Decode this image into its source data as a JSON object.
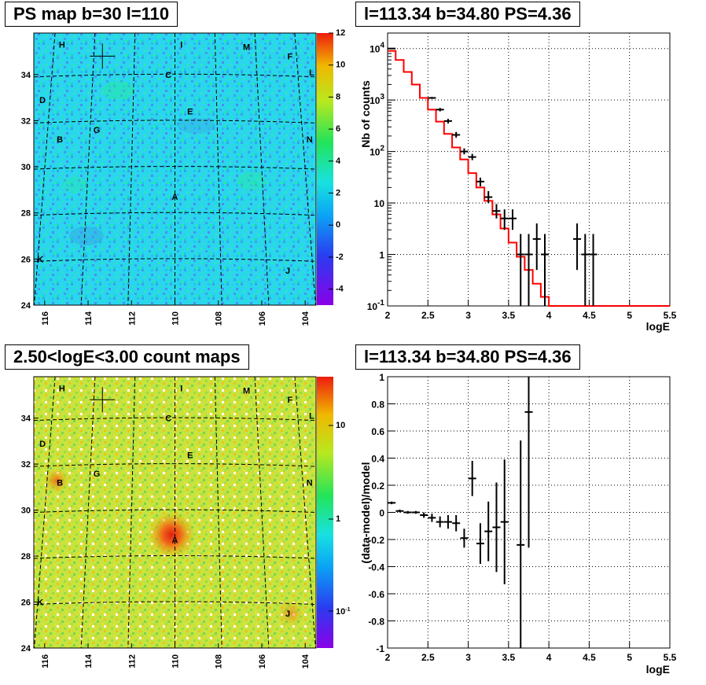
{
  "panels": {
    "tl_title": "PS map b=30 l=110",
    "tr_title": "l=113.34 b=34.80 PS=4.36",
    "bl_title": "2.50<logE<3.00 count maps",
    "br_title": "l=113.34 b=34.80 PS=4.36"
  },
  "colors": {
    "red_model": "#ff0000",
    "data": "#000000",
    "ps_map_base": "#2ad6ee",
    "count_map_base": "#bfe23c"
  },
  "chart_data": [
    {
      "type": "heatmap",
      "title": "PS map b=30 l=110",
      "xticks": [
        116,
        114,
        112,
        110,
        108,
        106,
        104
      ],
      "yticks": [
        34,
        32,
        30,
        28,
        26,
        24
      ],
      "xlim": [
        116.5,
        103.5
      ],
      "ylim": [
        24,
        35.8
      ],
      "zticks": [
        12,
        10,
        8,
        6,
        4,
        2,
        0,
        -2,
        -4
      ],
      "zlim": [
        -5,
        12
      ],
      "source_labels": [
        {
          "text": "H",
          "l": 115.2,
          "b": 35.3
        },
        {
          "text": "I",
          "l": 109.7,
          "b": 35.3
        },
        {
          "text": "M",
          "l": 106.7,
          "b": 35.2
        },
        {
          "text": "F",
          "l": 104.7,
          "b": 34.8
        },
        {
          "text": "L",
          "l": 103.7,
          "b": 34.1
        },
        {
          "text": "C",
          "l": 110.3,
          "b": 34.0
        },
        {
          "text": "D",
          "l": 116.1,
          "b": 32.9
        },
        {
          "text": "E",
          "l": 109.3,
          "b": 32.4
        },
        {
          "text": "G",
          "l": 113.6,
          "b": 31.6
        },
        {
          "text": "B",
          "l": 115.3,
          "b": 31.2
        },
        {
          "text": "N",
          "l": 103.8,
          "b": 31.2
        },
        {
          "text": "A",
          "l": 110.0,
          "b": 28.7
        },
        {
          "text": "K",
          "l": 116.2,
          "b": 26.0
        },
        {
          "text": "J",
          "l": 104.8,
          "b": 25.5
        }
      ],
      "marker": {
        "l": 113.34,
        "b": 34.8
      }
    },
    {
      "type": "line",
      "title": "l=113.34 b=34.80 PS=4.36",
      "xlabel": "logE",
      "ylabel": "Nb of counts",
      "yscale": "log",
      "xlim": [
        2,
        5.5
      ],
      "ylim": [
        0.1,
        20000
      ],
      "xticks": [
        "2",
        "2.5",
        "3",
        "3.5",
        "4",
        "4.5",
        "5",
        "5.5"
      ],
      "yticks": [
        {
          "value": 10000,
          "base": "10",
          "exp": "4"
        },
        {
          "value": 1000,
          "base": "10",
          "exp": "3"
        },
        {
          "value": 100,
          "base": "10",
          "exp": "2"
        },
        {
          "value": 10,
          "base": "10",
          "exp": ""
        },
        {
          "value": 1,
          "base": "1",
          "exp": ""
        },
        {
          "value": 0.1,
          "base": "10",
          "exp": "-1"
        }
      ],
      "model": {
        "edges": [
          2.0,
          2.1,
          2.2,
          2.3,
          2.4,
          2.5,
          2.6,
          2.7,
          2.8,
          2.9,
          3.0,
          3.1,
          3.2,
          3.3,
          3.4,
          3.5,
          3.6,
          3.7,
          3.8,
          3.9,
          4.0,
          5.5
        ],
        "values": [
          9000,
          6000,
          3500,
          2000,
          1100,
          650,
          380,
          220,
          120,
          70,
          38,
          20,
          11,
          6,
          3.2,
          1.7,
          0.9,
          0.5,
          0.27,
          0.15,
          0.1
        ]
      },
      "data": [
        {
          "x": 2.05,
          "y": 10000,
          "lo": 10000,
          "hi": 10000
        },
        {
          "x": 2.55,
          "y": 1100,
          "lo": 1050,
          "hi": 1150
        },
        {
          "x": 2.65,
          "y": 650,
          "lo": 600,
          "hi": 700
        },
        {
          "x": 2.75,
          "y": 390,
          "lo": 350,
          "hi": 430
        },
        {
          "x": 2.85,
          "y": 210,
          "lo": 185,
          "hi": 240
        },
        {
          "x": 2.95,
          "y": 100,
          "lo": 88,
          "hi": 115
        },
        {
          "x": 3.05,
          "y": 78,
          "lo": 68,
          "hi": 90
        },
        {
          "x": 3.15,
          "y": 26,
          "lo": 21,
          "hi": 31
        },
        {
          "x": 3.25,
          "y": 13,
          "lo": 10,
          "hi": 17
        },
        {
          "x": 3.35,
          "y": 7,
          "lo": 5,
          "hi": 9.5
        },
        {
          "x": 3.45,
          "y": 5,
          "lo": 3,
          "hi": 7.5
        },
        {
          "x": 3.55,
          "y": 5,
          "lo": 3,
          "hi": 7.5
        },
        {
          "x": 3.65,
          "y": 1,
          "lo": 0.1,
          "hi": 2.5
        },
        {
          "x": 3.75,
          "y": 1,
          "lo": 0.1,
          "hi": 2.5
        },
        {
          "x": 3.85,
          "y": 2,
          "lo": 0.5,
          "hi": 4
        },
        {
          "x": 3.95,
          "y": 1,
          "lo": 0.1,
          "hi": 2.5
        },
        {
          "x": 4.35,
          "y": 2,
          "lo": 0.5,
          "hi": 4
        },
        {
          "x": 4.45,
          "y": 1,
          "lo": 0.1,
          "hi": 2.5
        },
        {
          "x": 4.55,
          "y": 1,
          "lo": 0.1,
          "hi": 2.5
        }
      ]
    },
    {
      "type": "heatmap",
      "title": "2.50<logE<3.00 count maps",
      "xticks": [
        116,
        114,
        112,
        110,
        108,
        106,
        104
      ],
      "yticks": [
        34,
        32,
        30,
        28,
        26,
        24
      ],
      "xlim": [
        116.5,
        103.5
      ],
      "ylim": [
        24,
        35.8
      ],
      "zscale": "log",
      "zticks": [
        "10",
        "1",
        "10^-1"
      ],
      "source_labels": [
        {
          "text": "H",
          "l": 115.2,
          "b": 35.3
        },
        {
          "text": "I",
          "l": 109.7,
          "b": 35.3
        },
        {
          "text": "M",
          "l": 106.7,
          "b": 35.2
        },
        {
          "text": "F",
          "l": 104.7,
          "b": 34.8
        },
        {
          "text": "L",
          "l": 103.7,
          "b": 34.1
        },
        {
          "text": "C",
          "l": 110.3,
          "b": 34.0
        },
        {
          "text": "D",
          "l": 116.1,
          "b": 32.9
        },
        {
          "text": "E",
          "l": 109.3,
          "b": 32.4
        },
        {
          "text": "G",
          "l": 113.6,
          "b": 31.6
        },
        {
          "text": "B",
          "l": 115.3,
          "b": 31.2
        },
        {
          "text": "N",
          "l": 103.8,
          "b": 31.2
        },
        {
          "text": "A",
          "l": 110.0,
          "b": 28.7
        },
        {
          "text": "K",
          "l": 116.2,
          "b": 26.0
        },
        {
          "text": "J",
          "l": 104.8,
          "b": 25.5
        }
      ],
      "marker": {
        "l": 113.34,
        "b": 34.8
      }
    },
    {
      "type": "scatter",
      "title": "l=113.34 b=34.80 PS=4.36",
      "xlabel": "logE",
      "ylabel": "(data-model)/model",
      "xlim": [
        2,
        5.5
      ],
      "ylim": [
        -1,
        1
      ],
      "xticks": [
        "2",
        "2.5",
        "3",
        "3.5",
        "4",
        "4.5",
        "5",
        "5.5"
      ],
      "yticks": [
        "1",
        "0.8",
        "0.6",
        "0.4",
        "0.2",
        "0",
        "-0.2",
        "-0.4",
        "-0.6",
        "-0.8",
        "-1"
      ],
      "data": [
        {
          "x": 2.05,
          "y": 0.07,
          "err": 0.01
        },
        {
          "x": 2.15,
          "y": 0.01,
          "err": 0.01
        },
        {
          "x": 2.25,
          "y": 0.0,
          "err": 0.01
        },
        {
          "x": 2.35,
          "y": 0.0,
          "err": 0.01
        },
        {
          "x": 2.45,
          "y": -0.02,
          "err": 0.02
        },
        {
          "x": 2.55,
          "y": -0.04,
          "err": 0.03
        },
        {
          "x": 2.65,
          "y": -0.07,
          "err": 0.04
        },
        {
          "x": 2.75,
          "y": -0.07,
          "err": 0.05
        },
        {
          "x": 2.85,
          "y": -0.08,
          "err": 0.06
        },
        {
          "x": 2.95,
          "y": -0.19,
          "err": 0.07
        },
        {
          "x": 3.05,
          "y": 0.25,
          "err": 0.13
        },
        {
          "x": 3.15,
          "y": -0.23,
          "err": 0.15
        },
        {
          "x": 3.25,
          "y": -0.14,
          "err": 0.22
        },
        {
          "x": 3.35,
          "y": -0.11,
          "err": 0.33
        },
        {
          "x": 3.45,
          "y": -0.07,
          "err": 0.46
        },
        {
          "x": 3.65,
          "y": -0.24,
          "err": 0.77
        },
        {
          "x": 3.75,
          "y": 0.74,
          "err": 1.0
        }
      ]
    }
  ]
}
